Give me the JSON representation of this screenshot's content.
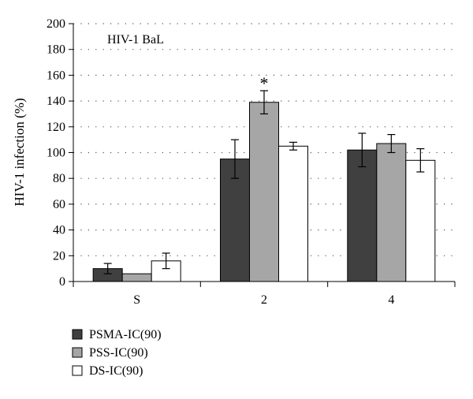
{
  "chart_data": {
    "type": "bar",
    "annotation": "HIV-1 BaL",
    "ylabel": "HIV-1 infection (%)",
    "xlabel": "",
    "ylim": [
      0,
      200
    ],
    "yticks": [
      0,
      20,
      40,
      60,
      80,
      100,
      120,
      140,
      160,
      180,
      200
    ],
    "grid": "horizontal-dotted",
    "legend_position": "bottom-left",
    "categories": [
      "S",
      "2",
      "4"
    ],
    "series": [
      {
        "name": "PSMA-IC(90)",
        "color": "#404040",
        "values": [
          10,
          95,
          102
        ],
        "errors": [
          4,
          15,
          13
        ]
      },
      {
        "name": "PSS-IC(90)",
        "color": "#a6a6a6",
        "values": [
          6,
          139,
          107
        ],
        "errors": [
          0,
          9,
          7
        ]
      },
      {
        "name": "DS-IC(90)",
        "color": "#ffffff",
        "values": [
          16,
          105,
          94
        ],
        "errors": [
          6,
          3,
          9
        ]
      }
    ],
    "significance": [
      {
        "category": "2",
        "series": "PSS-IC(90)",
        "mark": "*"
      }
    ]
  }
}
